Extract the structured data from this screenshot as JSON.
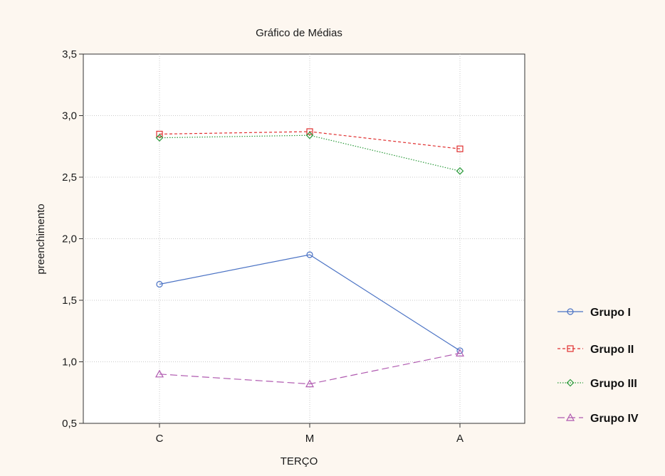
{
  "chart_data": {
    "type": "line",
    "title": "Gráfico de Médias",
    "xlabel": "TERÇO",
    "ylabel": "preenchimento",
    "categories": [
      "C",
      "M",
      "A"
    ],
    "ylim": [
      0.5,
      3.5
    ],
    "yticks": [
      "0,5",
      "1,0",
      "1,5",
      "2,0",
      "2,5",
      "3,0",
      "3,5"
    ],
    "grid": true,
    "legend_position": "right",
    "series": [
      {
        "name": "Grupo I",
        "values": [
          1.63,
          1.87,
          1.09
        ],
        "color": "#4a72c4",
        "marker": "circle",
        "dash": "solid"
      },
      {
        "name": "Grupo II",
        "values": [
          2.85,
          2.87,
          2.73
        ],
        "color": "#e03030",
        "marker": "square",
        "dash": "dashed"
      },
      {
        "name": "Grupo III",
        "values": [
          2.82,
          2.84,
          2.55
        ],
        "color": "#2a9a3a",
        "marker": "diamond",
        "dash": "dotted"
      },
      {
        "name": "Grupo IV",
        "values": [
          0.9,
          0.82,
          1.07
        ],
        "color": "#b05ab0",
        "marker": "triangle",
        "dash": "longdash"
      }
    ]
  }
}
